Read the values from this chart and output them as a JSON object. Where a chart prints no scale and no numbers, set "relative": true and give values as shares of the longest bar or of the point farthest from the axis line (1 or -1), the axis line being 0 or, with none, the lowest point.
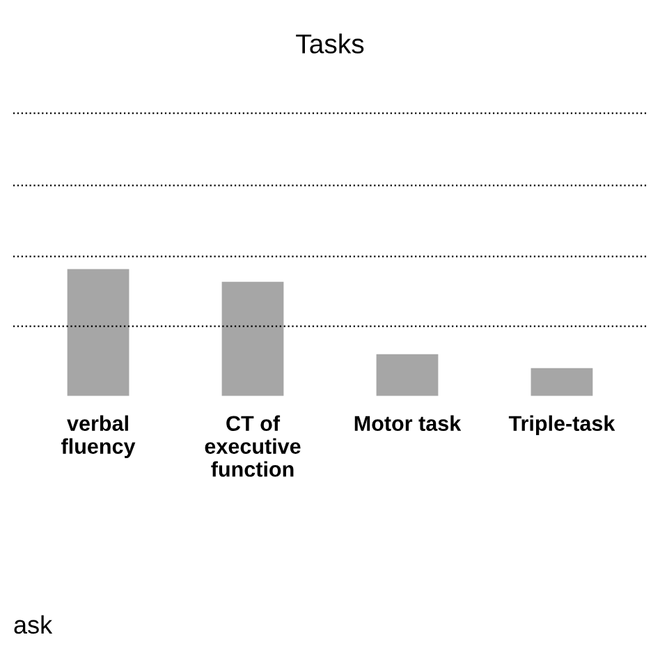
{
  "chart_data": {
    "type": "bar",
    "title": "Tasks",
    "relative": true,
    "categories": [
      "verbal\nfluency",
      "CT of\nexecutive\nfunction",
      "Motor task",
      "Triple-task"
    ],
    "values": [
      1,
      0.9,
      0.33,
      0.22
    ],
    "color": "#a6a6a6",
    "ref_lines": [
      {
        "axis": "y",
        "value": 0.55,
        "line_style": "dotted",
        "color": "#000000"
      },
      {
        "axis": "y",
        "value": 1.1,
        "line_style": "dotted",
        "color": "#000000"
      },
      {
        "axis": "y",
        "value": 1.66,
        "line_style": "dotted",
        "color": "#000000"
      },
      {
        "axis": "y",
        "value": 2.23,
        "line_style": "dotted",
        "color": "#000000"
      }
    ],
    "annotations": [
      "ask"
    ]
  }
}
